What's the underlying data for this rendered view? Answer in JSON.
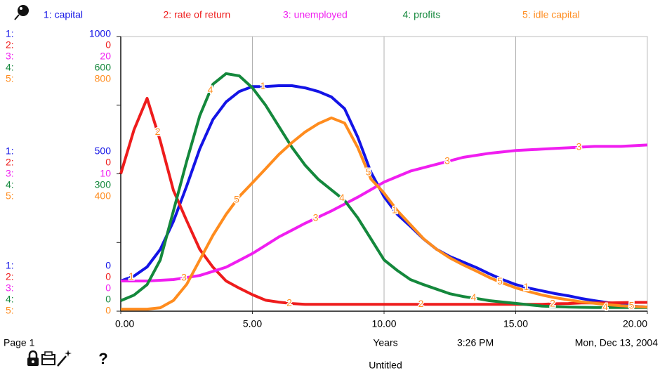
{
  "chart_data": {
    "type": "line",
    "x": [
      0,
      0.5,
      1,
      1.5,
      2,
      2.5,
      3,
      3.5,
      4,
      4.5,
      5,
      5.5,
      6,
      6.5,
      7,
      7.5,
      8,
      8.5,
      9,
      9.5,
      10,
      10.5,
      11,
      11.5,
      12,
      12.5,
      13,
      13.5,
      14,
      14.5,
      15,
      15.5,
      16,
      16.5,
      17,
      17.5,
      18,
      18.5,
      19,
      19.5,
      20
    ],
    "xlim": [
      0,
      20
    ],
    "xticks": [
      {
        "value": 0,
        "label": "0.00"
      },
      {
        "value": 5,
        "label": "5.00"
      },
      {
        "value": 10,
        "label": "10.00"
      },
      {
        "value": 15,
        "label": "15.00"
      },
      {
        "value": 20,
        "label": "20.00"
      }
    ],
    "xlabel": "Years",
    "grid": true,
    "series": [
      {
        "name": "capital",
        "label": "1: capital",
        "axis_key": "1:",
        "marker": "1",
        "color": "#1414e6",
        "ylim": [
          0,
          1000
        ],
        "yticks": [
          0,
          500,
          1000
        ],
        "values": [
          110,
          128,
          161,
          225,
          327,
          455,
          591,
          698,
          762,
          800,
          818,
          818,
          821,
          821,
          813,
          800,
          780,
          737,
          634,
          506,
          417,
          353,
          309,
          263,
          225,
          199,
          179,
          159,
          136,
          115,
          97,
          84,
          74,
          64,
          56,
          46,
          38,
          31,
          26,
          18,
          15
        ]
      },
      {
        "name": "rate of return",
        "label": "2: rate of return",
        "axis_key": "2:",
        "marker": "2",
        "color": "#ee1c1c",
        "ylim": [
          0,
          0.1
        ],
        "yticks": [
          {
            "value": 0,
            "label": "0"
          },
          {
            "value": 0.05,
            "label": "0"
          },
          {
            "value": 0.1,
            "label": "0"
          }
        ],
        "values": [
          0.05,
          0.066,
          0.0775,
          0.062,
          0.044,
          0.033,
          0.0225,
          0.016,
          0.011,
          0.0084,
          0.006,
          0.004,
          0.0033,
          0.0028,
          0.0025,
          0.0025,
          0.0025,
          0.0025,
          0.0025,
          0.0025,
          0.0025,
          0.0025,
          0.0025,
          0.0025,
          0.0025,
          0.0025,
          0.0025,
          0.0025,
          0.0025,
          0.0025,
          0.0025,
          0.0025,
          0.0025,
          0.0027,
          0.0028,
          0.003,
          0.003,
          0.003,
          0.0031,
          0.0032,
          0.0032
        ]
      },
      {
        "name": "unemployed",
        "label": "3: unemployed",
        "axis_key": "3:",
        "marker": "3",
        "color": "#f01ef0",
        "ylim": [
          0,
          20
        ],
        "yticks": [
          0,
          10,
          20
        ],
        "values": [
          2.2,
          2.2,
          2.2,
          2.25,
          2.3,
          2.45,
          2.6,
          2.9,
          3.2,
          3.7,
          4.2,
          4.8,
          5.4,
          5.9,
          6.4,
          6.85,
          7.3,
          7.8,
          8.3,
          8.85,
          9.4,
          9.8,
          10.2,
          10.45,
          10.7,
          10.95,
          11.2,
          11.35,
          11.5,
          11.6,
          11.7,
          11.75,
          11.8,
          11.85,
          11.9,
          11.95,
          12.0,
          12.0,
          12.0,
          12.05,
          12.1
        ]
      },
      {
        "name": "profits",
        "label": "4: profits",
        "axis_key": "4:",
        "marker": "4",
        "color": "#14883c",
        "ylim": [
          0,
          600
        ],
        "yticks": [
          0,
          300,
          600
        ],
        "values": [
          23,
          35,
          58,
          112,
          219,
          327,
          427,
          496,
          519,
          514,
          488,
          450,
          404,
          358,
          319,
          288,
          265,
          242,
          204,
          158,
          112,
          89,
          69,
          58,
          48,
          38,
          32,
          28,
          23,
          20,
          17,
          14,
          11,
          10,
          9,
          8.5,
          8,
          8,
          8,
          8,
          8
        ]
      },
      {
        "name": "idle capital",
        "label": "5: idle capital",
        "axis_key": "5:",
        "marker": "5",
        "color": "#ff8c1e",
        "ylim": [
          0,
          800
        ],
        "yticks": [
          0,
          400,
          800
        ],
        "values": [
          6,
          6,
          6,
          10,
          31,
          78,
          149,
          221,
          282,
          334,
          374,
          415,
          456,
          491,
          522,
          546,
          563,
          548,
          477,
          385,
          344,
          293,
          252,
          211,
          180,
          155,
          135,
          117,
          98,
          82,
          68,
          57,
          47,
          39,
          33,
          27,
          23,
          19,
          16,
          14,
          12
        ]
      }
    ]
  },
  "footer": {
    "page": "Page 1",
    "time": "3:26 PM",
    "date": "Mon, Dec 13, 2004",
    "title": "Untitled",
    "help": "?"
  }
}
